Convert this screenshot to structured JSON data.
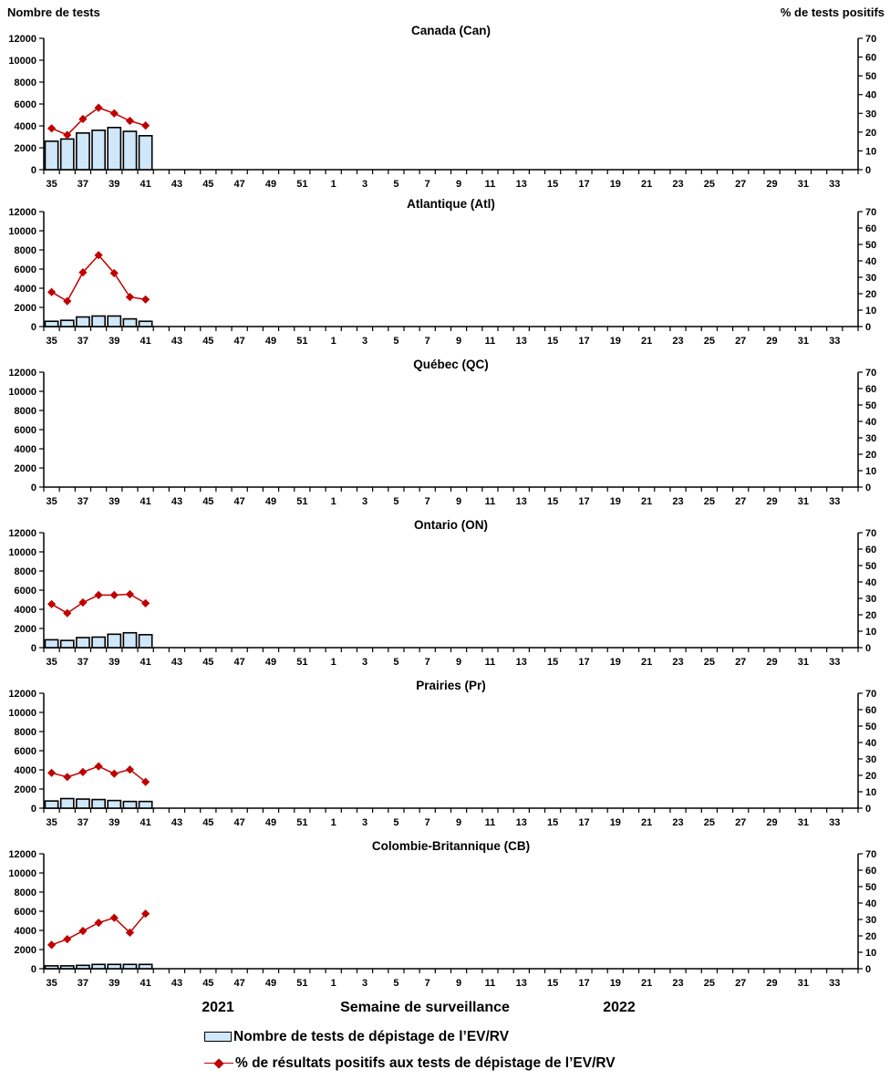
{
  "header": {
    "left_axis_title": "Nombre de tests",
    "right_axis_title": "% de tests positifs"
  },
  "axes": {
    "left_tick_labels": [
      "0",
      "2000",
      "4000",
      "6000",
      "8000",
      "10000",
      "12000"
    ],
    "left_max": 12000,
    "right_tick_labels": [
      "0",
      "10",
      "20",
      "30",
      "40",
      "50",
      "60",
      "70"
    ],
    "right_max": 70,
    "x_labels": [
      "35",
      "37",
      "39",
      "41",
      "43",
      "45",
      "47",
      "49",
      "51",
      "1",
      "3",
      "5",
      "7",
      "9",
      "11",
      "13",
      "15",
      "17",
      "19",
      "21",
      "23",
      "25",
      "27",
      "29",
      "31",
      "33"
    ],
    "num_weeks": 52,
    "grid": false
  },
  "footer": {
    "year_left": "2021",
    "x_axis_title": "Semaine de surveillance",
    "year_right": "2022"
  },
  "legend": {
    "bars_label": "Nombre de tests de dépistage de l’EV/RV",
    "line_label": "% de résultats positifs aux tests de dépistage de l’EV/RV"
  },
  "colors": {
    "bar_fill": "#CFE7F8",
    "bar_stroke": "#000000",
    "line": "#C00000",
    "axis": "#000000"
  },
  "chart_data": [
    {
      "type": "bar",
      "title": "Canada (Can)",
      "x": [
        35,
        36,
        37,
        38,
        39,
        40,
        41
      ],
      "left_ylim": [
        0,
        12000
      ],
      "right_ylim": [
        0,
        70
      ],
      "legend_position": "bottom",
      "series": [
        {
          "name": "Nombre de tests de dépistage de l’EV/RV",
          "type": "bar",
          "axis": "left",
          "values": [
            2600,
            2800,
            3350,
            3600,
            3850,
            3500,
            3100
          ]
        },
        {
          "name": "% de résultats positifs aux tests de dépistage de l’EV/RV",
          "type": "line",
          "axis": "right",
          "values": [
            22,
            18.5,
            27,
            33,
            30,
            26,
            23.5
          ]
        }
      ]
    },
    {
      "type": "bar",
      "title": "Atlantique (Atl)",
      "x": [
        35,
        36,
        37,
        38,
        39,
        40,
        41
      ],
      "left_ylim": [
        0,
        12000
      ],
      "right_ylim": [
        0,
        70
      ],
      "series": [
        {
          "name": "Nombre de tests de dépistage de l’EV/RV",
          "type": "bar",
          "axis": "left",
          "values": [
            550,
            650,
            1000,
            1100,
            1100,
            800,
            550
          ]
        },
        {
          "name": "% de résultats positifs aux tests de dépistage de l’EV/RV",
          "type": "line",
          "axis": "right",
          "values": [
            21,
            15.5,
            33,
            43.5,
            32.5,
            18,
            16.5
          ]
        }
      ]
    },
    {
      "type": "bar",
      "title": "Québec (QC)",
      "x": [],
      "left_ylim": [
        0,
        12000
      ],
      "right_ylim": [
        0,
        70
      ],
      "series": [
        {
          "name": "Nombre de tests de dépistage de l’EV/RV",
          "type": "bar",
          "axis": "left",
          "values": []
        },
        {
          "name": "% de résultats positifs aux tests de dépistage de l’EV/RV",
          "type": "line",
          "axis": "right",
          "values": []
        }
      ]
    },
    {
      "type": "bar",
      "title": "Ontario (ON)",
      "x": [
        35,
        36,
        37,
        38,
        39,
        40,
        41
      ],
      "left_ylim": [
        0,
        12000
      ],
      "right_ylim": [
        0,
        70
      ],
      "series": [
        {
          "name": "Nombre de tests de dépistage de l’EV/RV",
          "type": "bar",
          "axis": "left",
          "values": [
            820,
            750,
            1050,
            1100,
            1400,
            1550,
            1350
          ]
        },
        {
          "name": "% de résultats positifs aux tests de dépistage de l’EV/RV",
          "type": "line",
          "axis": "right",
          "values": [
            26.5,
            21,
            27.5,
            32,
            32,
            32.5,
            27
          ]
        }
      ]
    },
    {
      "type": "bar",
      "title": "Prairies (Pr)",
      "x": [
        35,
        36,
        37,
        38,
        39,
        40,
        41
      ],
      "left_ylim": [
        0,
        12000
      ],
      "right_ylim": [
        0,
        70
      ],
      "series": [
        {
          "name": "Nombre de tests de dépistage de l’EV/RV",
          "type": "bar",
          "axis": "left",
          "values": [
            750,
            1000,
            950,
            900,
            800,
            700,
            700
          ]
        },
        {
          "name": "% de résultats positifs aux tests de dépistage de l’EV/RV",
          "type": "line",
          "axis": "right",
          "values": [
            21.5,
            19,
            22,
            25.5,
            21,
            23.5,
            16
          ]
        }
      ]
    },
    {
      "type": "bar",
      "title": "Colombie-Britannique (CB)",
      "x": [
        35,
        36,
        37,
        38,
        39,
        40,
        41
      ],
      "left_ylim": [
        0,
        12000
      ],
      "right_ylim": [
        0,
        70
      ],
      "series": [
        {
          "name": "Nombre de tests de dépistage de l’EV/RV",
          "type": "bar",
          "axis": "left",
          "values": [
            300,
            300,
            350,
            450,
            450,
            450,
            450
          ]
        },
        {
          "name": "% de résultats positifs aux tests de dépistage de l’EV/RV",
          "type": "line",
          "axis": "right",
          "values": [
            14.5,
            18,
            23,
            28,
            31,
            22,
            33.5
          ]
        }
      ]
    }
  ]
}
